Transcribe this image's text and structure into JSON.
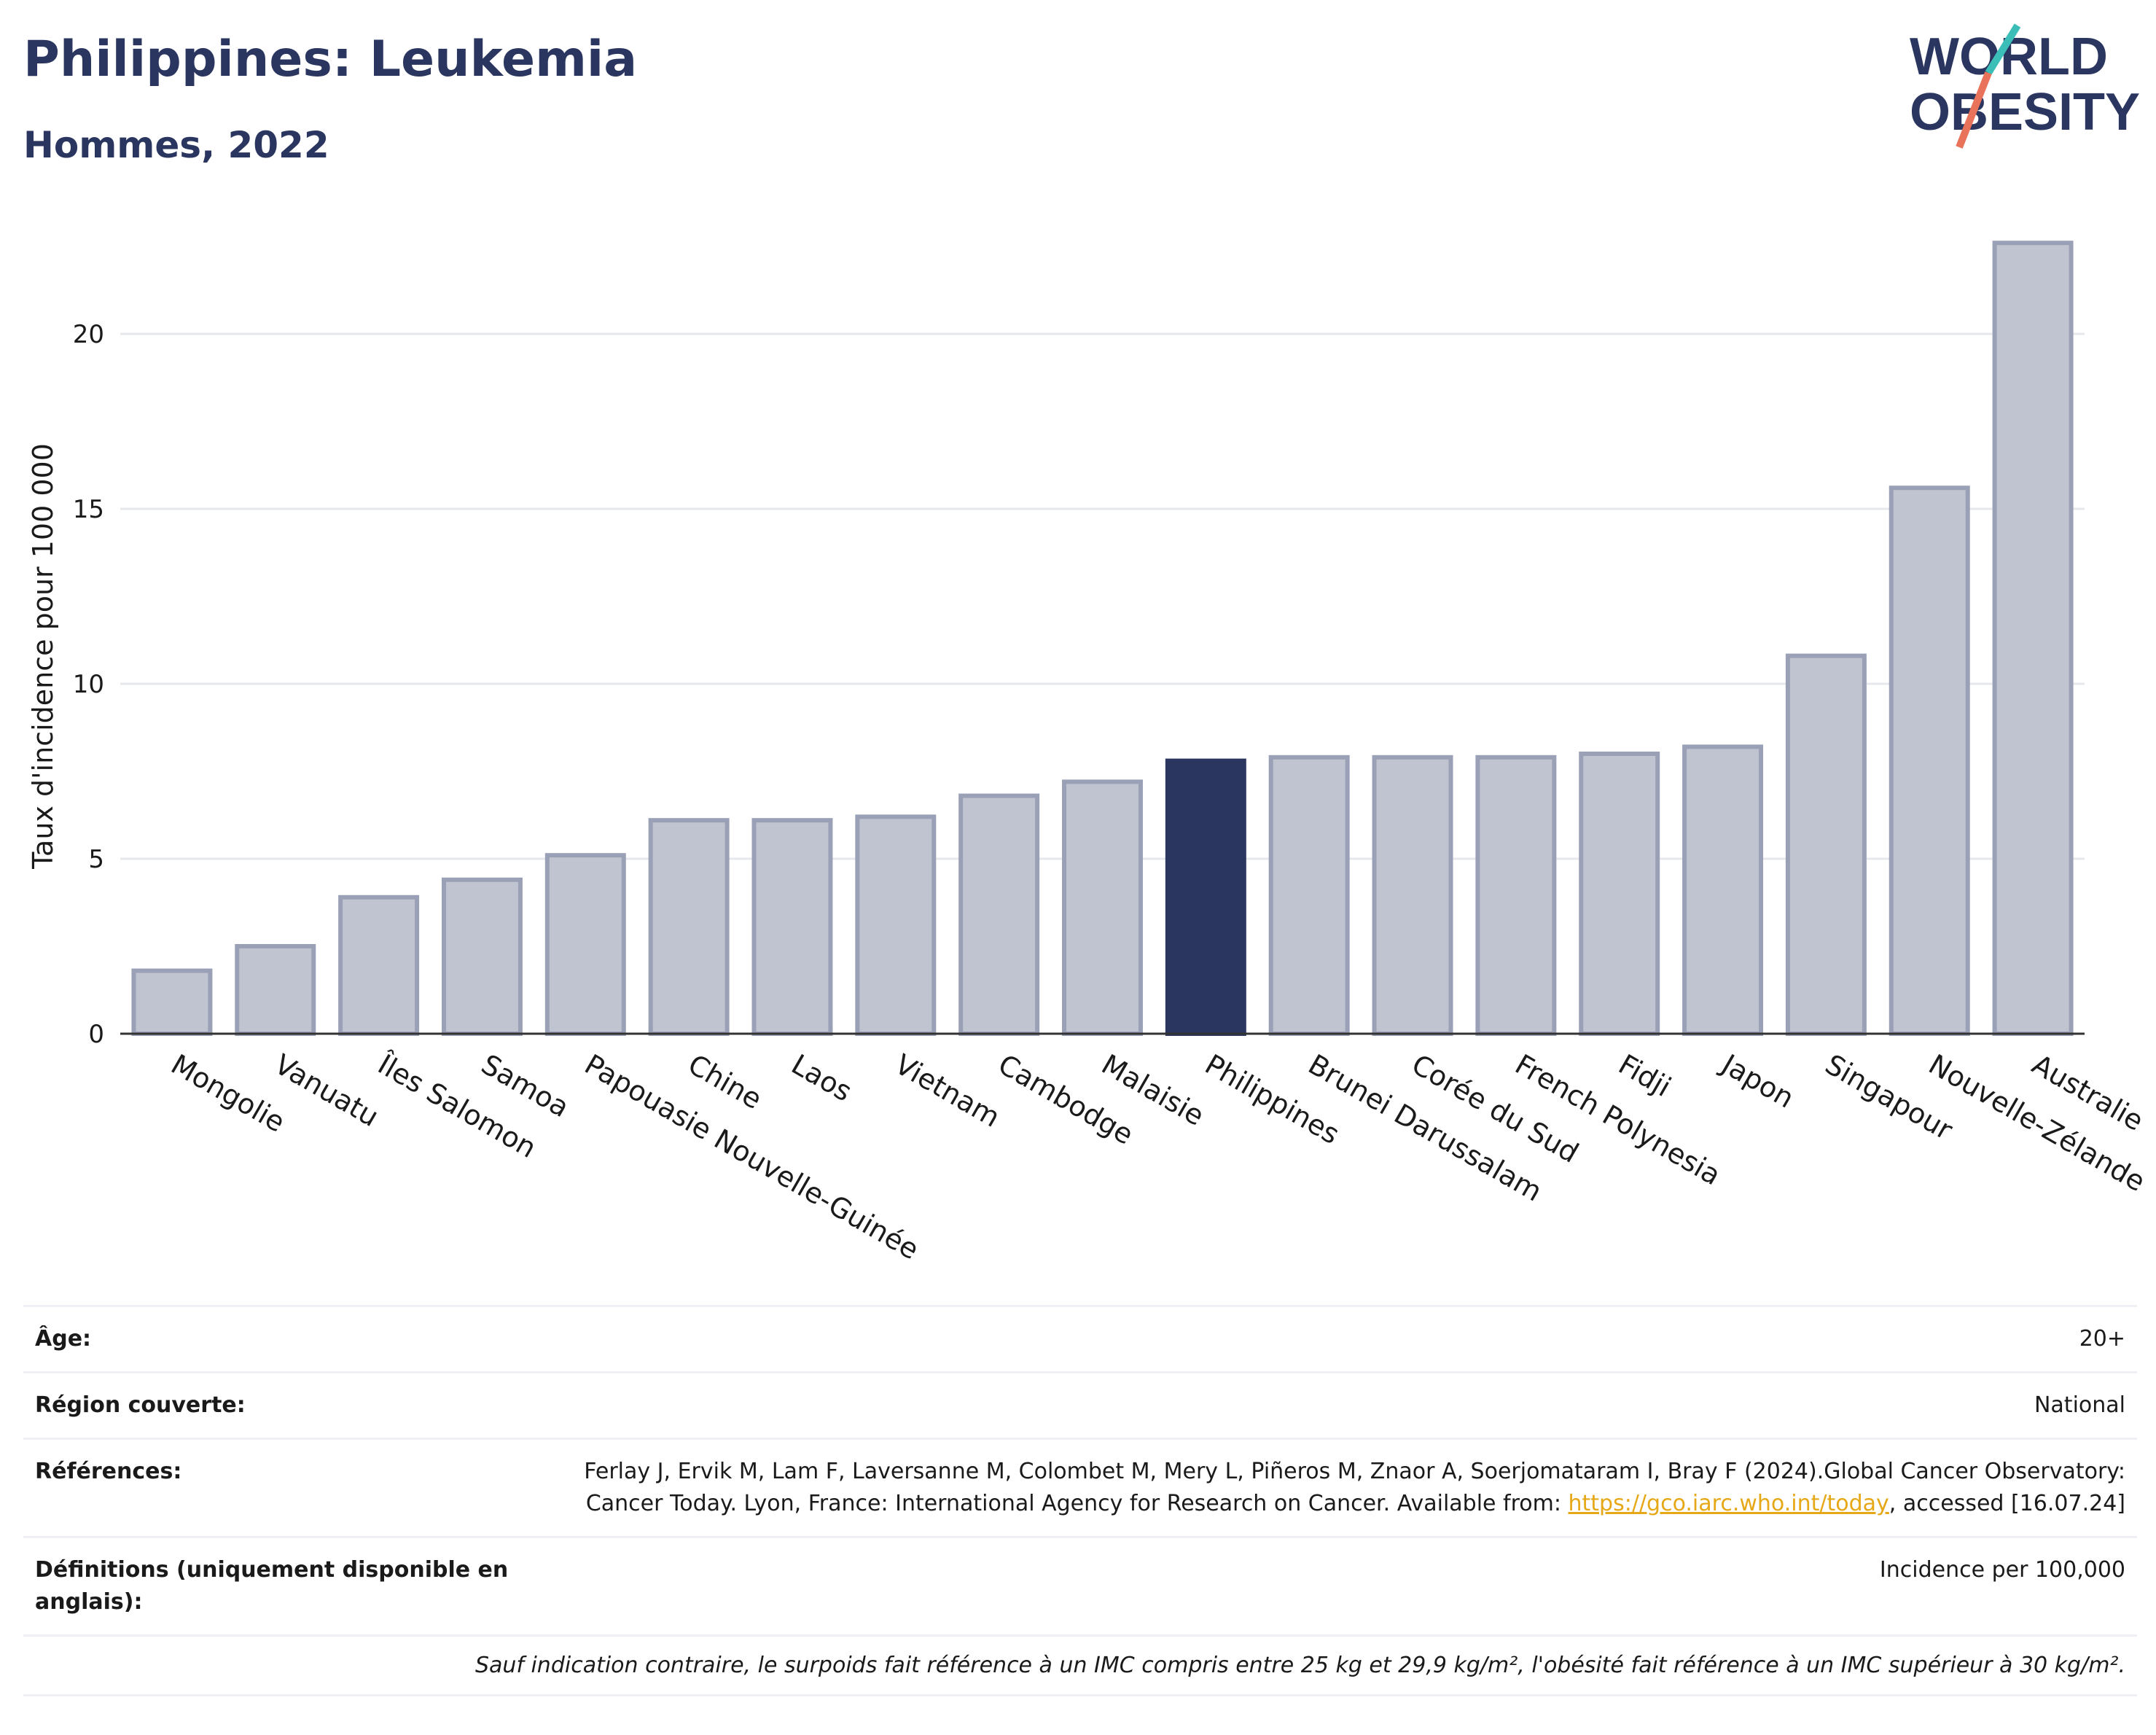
{
  "header": {
    "title": "Philippines: Leukemia",
    "subtitle": "Hommes, 2022"
  },
  "logo": {
    "line1": "WORLD",
    "line2": "OBESITY",
    "name": "world-obesity-logo"
  },
  "chart_data": {
    "type": "bar",
    "ylabel": "Taux d'incidence pour 100 000",
    "xlabel": "",
    "ylim": [
      0,
      23.5
    ],
    "yticks": [
      0,
      5,
      10,
      15,
      20
    ],
    "grid": true,
    "highlight": "Philippines",
    "colors": {
      "bar": "#c0c4d0",
      "bar_border": "#9aa0b6",
      "highlight": "#2a365f",
      "grid": "#e6e8ee"
    },
    "categories": [
      "Mongolie",
      "Vanuatu",
      "Îles Salomon",
      "Samoa",
      "Papouasie Nouvelle-Guinée",
      "Chine",
      "Laos",
      "Vietnam",
      "Cambodge",
      "Malaisie",
      "Philippines",
      "Brunei Darussalam",
      "Corée du Sud",
      "French Polynesia",
      "Fidji",
      "Japon",
      "Singapour",
      "Nouvelle-Zélande",
      "Australie"
    ],
    "values": [
      1.8,
      2.5,
      3.9,
      4.4,
      5.1,
      6.1,
      6.1,
      6.2,
      6.8,
      7.2,
      7.8,
      7.9,
      7.9,
      7.9,
      8.0,
      8.2,
      10.8,
      15.6,
      22.6
    ]
  },
  "meta": {
    "age_label": "Âge:",
    "age_value": "20+",
    "region_label": "Région couverte:",
    "region_value": "National",
    "refs_label": "Références:",
    "refs_text1": "Ferlay J, Ervik M, Lam F, Laversanne M, Colombet M, Mery L, Piñeros M, Znaor A, Soerjomataram I, Bray F (2024).Global Cancer Observatory: Cancer Today. Lyon, France: International Agency for Research on Cancer. Available from: ",
    "refs_link": "https://gco.iarc.who.int/today",
    "refs_text2": ", accessed [16.07.24]",
    "defs_label": "Définitions (uniquement disponible en anglais):",
    "defs_value": "Incidence per 100,000",
    "note": "Sauf indication contraire, le surpoids fait référence à un IMC compris entre 25 kg et 29,9 kg/m², l'obésité fait référence à un IMC supérieur à 30 kg/m²."
  }
}
